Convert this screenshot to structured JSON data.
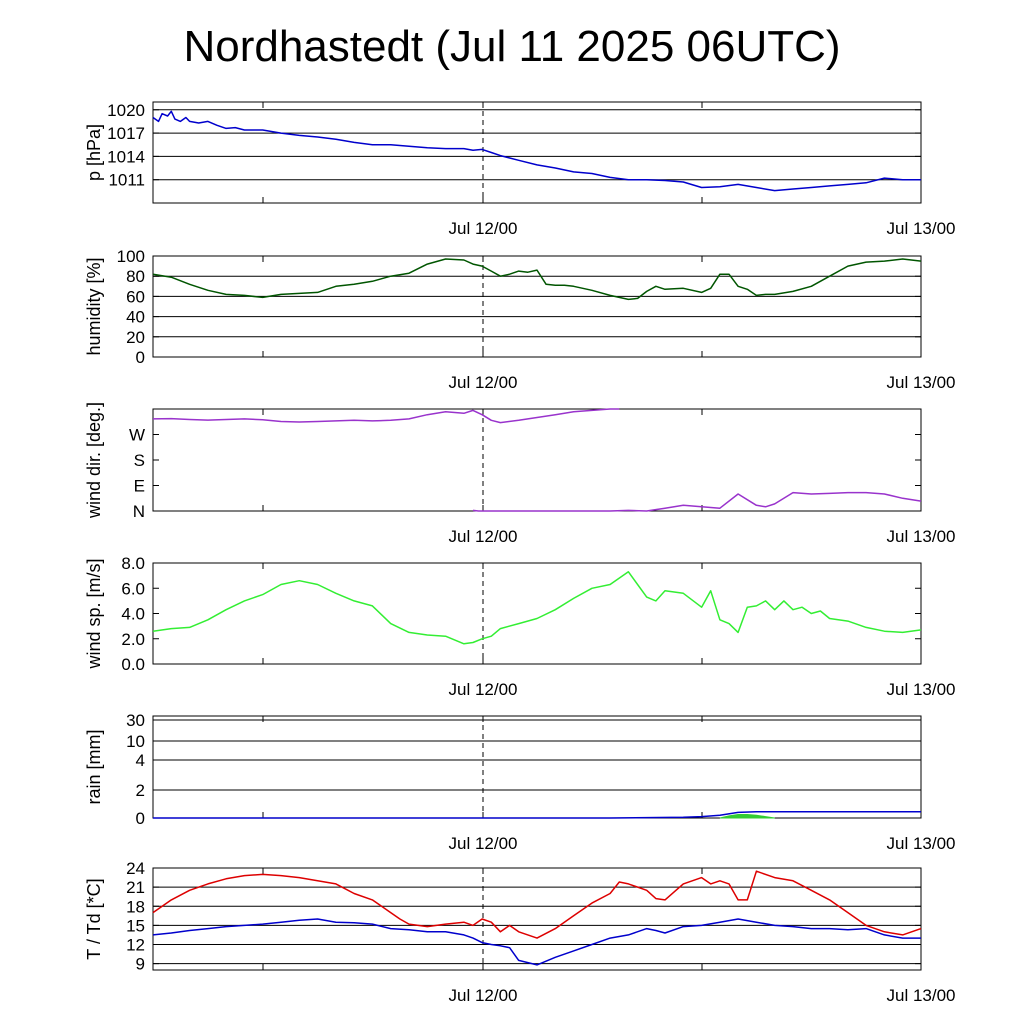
{
  "title": "Nordhastedt (Jul 11 2025 06UTC)",
  "x_tick_labels": [
    "Jul 12/00",
    "Jul 13/00"
  ],
  "chart_data": [
    {
      "type": "line",
      "ylabel": "p [hPa]",
      "ylim": [
        1008,
        1021
      ],
      "yticks": [
        1011,
        1014,
        1017,
        1020
      ],
      "ytick_labels": [
        "1011",
        "1014",
        "1017",
        "1020"
      ],
      "grid": true,
      "x_unit": "hours since Jul 11 06UTC",
      "xlim": [
        0,
        42
      ],
      "series": [
        {
          "color": "#0000cc",
          "x": [
            0,
            0.3,
            0.5,
            0.8,
            1.0,
            1.2,
            1.5,
            1.8,
            2,
            2.5,
            3,
            3.5,
            4,
            4.5,
            5,
            5.5,
            6,
            7,
            8,
            9,
            10,
            11,
            12,
            13,
            14,
            15,
            16,
            17,
            17.5,
            18,
            18.5,
            19,
            20,
            21,
            22,
            23,
            24,
            25,
            26,
            27,
            28,
            29,
            30,
            31,
            32,
            33,
            34,
            35,
            36,
            37,
            38,
            39,
            40,
            41,
            42
          ],
          "y": [
            1019,
            1018.5,
            1019.5,
            1019.2,
            1019.8,
            1018.8,
            1018.5,
            1019.0,
            1018.5,
            1018.3,
            1018.5,
            1018.0,
            1017.6,
            1017.7,
            1017.4,
            1017.4,
            1017.4,
            1017.0,
            1016.7,
            1016.5,
            1016.2,
            1015.8,
            1015.5,
            1015.5,
            1015.3,
            1015.1,
            1015.0,
            1015.0,
            1014.8,
            1014.9,
            1014.5,
            1014.1,
            1013.5,
            1012.9,
            1012.5,
            1012.0,
            1011.8,
            1011.3,
            1011.0,
            1011.0,
            1010.9,
            1010.7,
            1010.0,
            1010.1,
            1010.4,
            1010.0,
            1009.6,
            1009.8,
            1010.0,
            1010.2,
            1010.4,
            1010.6,
            1011.2,
            1011.0,
            1011.0
          ]
        }
      ]
    },
    {
      "type": "line",
      "ylabel": "humidity [%]",
      "ylim": [
        0,
        100
      ],
      "yticks": [
        0,
        20,
        40,
        60,
        80,
        100
      ],
      "ytick_labels": [
        "0",
        "20",
        "40",
        "60",
        "80",
        "100"
      ],
      "grid": true,
      "x_unit": "hours since Jul 11 06UTC",
      "xlim": [
        0,
        42
      ],
      "series": [
        {
          "color": "#005500",
          "x": [
            0,
            1,
            2,
            3,
            4,
            5,
            6,
            7,
            8,
            9,
            10,
            11,
            12,
            13,
            14,
            15,
            16,
            17,
            17.5,
            18,
            18.5,
            19,
            19.5,
            20,
            20.5,
            21,
            21.5,
            22,
            22.5,
            23,
            24,
            25,
            26,
            26.5,
            27,
            27.5,
            28,
            29,
            30,
            30.5,
            31,
            31.5,
            32,
            32.5,
            33,
            33.5,
            34,
            35,
            36,
            37,
            38,
            39,
            40,
            41,
            42
          ],
          "y": [
            82,
            79,
            72,
            66,
            62,
            61,
            59,
            62,
            63,
            64,
            70,
            72,
            75,
            80,
            83,
            92,
            97,
            96,
            92,
            90,
            85,
            80,
            82,
            85,
            84,
            86,
            72,
            71,
            71,
            70,
            66,
            61,
            57,
            58,
            65,
            70,
            67,
            68,
            64,
            68,
            82,
            82,
            70,
            67,
            61,
            62,
            62,
            65,
            70,
            80,
            90,
            94,
            95,
            97,
            95
          ]
        }
      ]
    },
    {
      "type": "scatter",
      "ylabel": "wind dir. [deg.]",
      "ylim": [
        0,
        360
      ],
      "yticks": [
        0,
        90,
        180,
        270
      ],
      "ytick_labels": [
        "N",
        "E",
        "S",
        "W"
      ],
      "grid": false,
      "x_unit": "hours since Jul 11 06UTC",
      "xlim": [
        0,
        42
      ],
      "series": [
        {
          "color": "#9933cc",
          "x": [
            0,
            1,
            2,
            3,
            4,
            5,
            6,
            7,
            8,
            9,
            10,
            11,
            12,
            13,
            14,
            15,
            16,
            17,
            17.5,
            18,
            18.5,
            19,
            20,
            21,
            22,
            23,
            24,
            25,
            25.5
          ],
          "y": [
            325,
            326,
            323,
            321,
            323,
            325,
            322,
            316,
            314,
            316,
            318,
            320,
            318,
            320,
            325,
            340,
            350,
            345,
            355,
            340,
            320,
            312,
            320,
            330,
            340,
            350,
            355,
            360,
            360
          ]
        },
        {
          "color": "#9933cc",
          "x": [
            17.5,
            17.8,
            25,
            26,
            27,
            28,
            29,
            30,
            31,
            32,
            33,
            33.5,
            34,
            35,
            36,
            37,
            38,
            39,
            40,
            41,
            42
          ],
          "y": [
            2,
            0,
            0,
            2,
            0,
            10,
            20,
            15,
            10,
            60,
            20,
            15,
            25,
            65,
            60,
            62,
            65,
            65,
            60,
            45,
            35
          ]
        }
      ]
    },
    {
      "type": "line",
      "ylabel": "wind sp. [m/s]",
      "ylim": [
        0,
        8
      ],
      "yticks": [
        0,
        2,
        4,
        6,
        8
      ],
      "ytick_labels": [
        "0.0",
        "2.0",
        "4.0",
        "6.0",
        "8.0"
      ],
      "grid": false,
      "x_unit": "hours since Jul 11 06UTC",
      "xlim": [
        0,
        42
      ],
      "series": [
        {
          "color": "#33ee33",
          "x": [
            0,
            1,
            2,
            3,
            4,
            5,
            6,
            7,
            8,
            9,
            10,
            11,
            12,
            13,
            14,
            15,
            16,
            17,
            17.5,
            18,
            18.5,
            19,
            20,
            21,
            22,
            23,
            24,
            25,
            26,
            27,
            27.5,
            28,
            29,
            30,
            30.5,
            31,
            31.5,
            32,
            32.5,
            33,
            33.5,
            34,
            34.5,
            35,
            35.5,
            36,
            36.5,
            37,
            38,
            39,
            40,
            41,
            42
          ],
          "y": [
            2.6,
            2.8,
            2.9,
            3.5,
            4.3,
            5.0,
            5.5,
            6.3,
            6.6,
            6.3,
            5.6,
            5.0,
            4.6,
            3.2,
            2.5,
            2.3,
            2.2,
            1.6,
            1.7,
            2.0,
            2.2,
            2.8,
            3.2,
            3.6,
            4.3,
            5.2,
            6.0,
            6.3,
            7.3,
            5.3,
            5.0,
            5.8,
            5.6,
            4.5,
            5.8,
            3.5,
            3.2,
            2.5,
            4.5,
            4.6,
            5.0,
            4.3,
            5.0,
            4.3,
            4.5,
            4.0,
            4.2,
            3.6,
            3.4,
            2.9,
            2.6,
            2.5,
            2.7
          ]
        }
      ]
    },
    {
      "type": "area",
      "ylabel": "rain [mm]",
      "ylim": [
        0,
        30
      ],
      "scale": "custom",
      "yticks": [
        0,
        2,
        4,
        10,
        30
      ],
      "ytick_labels": [
        "0",
        "2",
        "4",
        "10",
        "30"
      ],
      "grid": true,
      "x_unit": "hours since Jul 11 06UTC",
      "xlim": [
        0,
        42
      ],
      "series": [
        {
          "color": "#0000cc",
          "x": [
            0,
            10,
            20,
            25,
            29,
            30,
            31,
            32,
            33,
            34,
            36,
            38,
            40,
            42
          ],
          "y": [
            0,
            0,
            0,
            0,
            0.05,
            0.1,
            0.2,
            0.4,
            0.45,
            0.45,
            0.45,
            0.45,
            0.45,
            0.45
          ]
        },
        {
          "color": "#33cc33",
          "x": [
            31,
            31.5,
            32,
            32.5,
            33,
            33.5,
            34
          ],
          "y": [
            0,
            0.15,
            0.25,
            0.25,
            0.2,
            0.1,
            0
          ]
        }
      ]
    },
    {
      "type": "line",
      "ylabel": "T / Td [*C]",
      "ylim": [
        8,
        24
      ],
      "yticks": [
        9,
        12,
        15,
        18,
        21,
        24
      ],
      "ytick_labels": [
        "9",
        "12",
        "15",
        "18",
        "21",
        "24"
      ],
      "grid": true,
      "x_unit": "hours since Jul 11 06UTC",
      "xlim": [
        0,
        42
      ],
      "series": [
        {
          "color": "#dd0000",
          "x": [
            0,
            1,
            2,
            3,
            4,
            5,
            6,
            7,
            8,
            9,
            10,
            11,
            12,
            13,
            13.5,
            14,
            15,
            16,
            17,
            17.5,
            18,
            18.5,
            19,
            19.5,
            20,
            21,
            22,
            23,
            24,
            25,
            25.5,
            26,
            27,
            27.5,
            28,
            29,
            30,
            30.5,
            31,
            31.5,
            32,
            32.5,
            33,
            34,
            35,
            36,
            37,
            38,
            39,
            40,
            41,
            42
          ],
          "y": [
            17,
            19,
            20.5,
            21.5,
            22.3,
            22.8,
            23.0,
            22.8,
            22.5,
            22.0,
            21.5,
            20.0,
            19.0,
            17.0,
            16.0,
            15.2,
            14.8,
            15.2,
            15.5,
            15.0,
            16.0,
            15.5,
            14.0,
            15.0,
            14.0,
            13.0,
            14.5,
            16.5,
            18.5,
            20.0,
            21.8,
            21.5,
            20.5,
            19.2,
            19.0,
            21.5,
            22.5,
            21.5,
            22.0,
            21.5,
            19.0,
            19.0,
            23.5,
            22.5,
            22.0,
            20.5,
            19.0,
            17.0,
            15.0,
            14.0,
            13.5,
            14.5
          ]
        },
        {
          "color": "#0000cc",
          "x": [
            0,
            1,
            2,
            3,
            4,
            5,
            6,
            7,
            8,
            9,
            10,
            11,
            12,
            13,
            14,
            15,
            16,
            17,
            17.5,
            18,
            18.5,
            19,
            19.5,
            20,
            21,
            22,
            23,
            24,
            25,
            26,
            27,
            27.5,
            28,
            29,
            30,
            31,
            32,
            33,
            34,
            35,
            36,
            37,
            38,
            39,
            40,
            41,
            42
          ],
          "y": [
            13.5,
            13.8,
            14.2,
            14.5,
            14.8,
            15.0,
            15.2,
            15.5,
            15.8,
            16.0,
            15.5,
            15.4,
            15.2,
            14.5,
            14.3,
            14.0,
            14.0,
            13.5,
            13.0,
            12.3,
            12.0,
            11.8,
            11.5,
            9.5,
            8.8,
            10.0,
            11.0,
            12.0,
            13.0,
            13.5,
            14.5,
            14.2,
            13.8,
            14.8,
            15.0,
            15.5,
            16.0,
            15.5,
            15.0,
            14.8,
            14.5,
            14.5,
            14.3,
            14.5,
            13.5,
            13.0,
            13.0
          ]
        }
      ]
    }
  ]
}
